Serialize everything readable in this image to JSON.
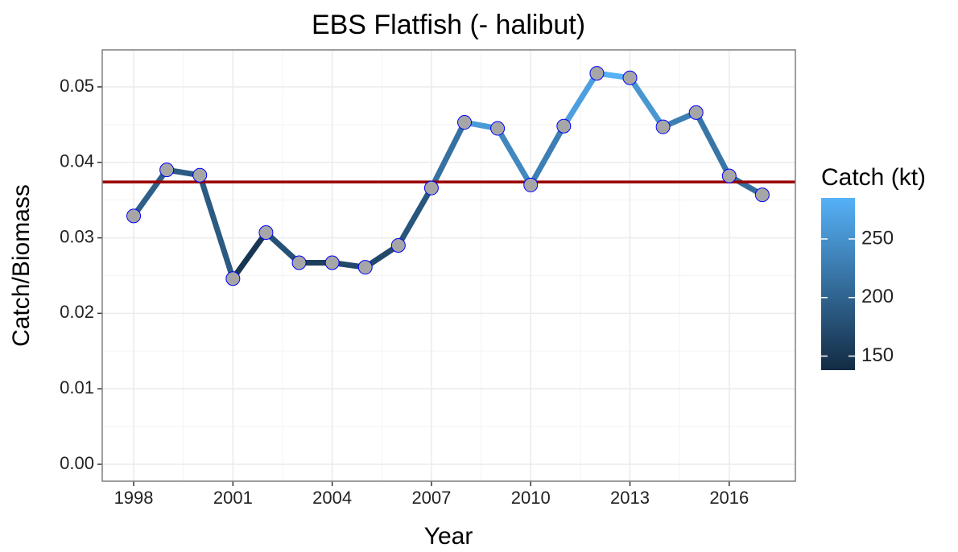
{
  "chart_data": {
    "type": "line",
    "title": "EBS Flatfish (- halibut)",
    "x_label": "Year",
    "y_label": "Catch/Biomass",
    "x": [
      1998,
      1999,
      2000,
      2001,
      2002,
      2003,
      2004,
      2005,
      2006,
      2007,
      2008,
      2009,
      2010,
      2011,
      2012,
      2013,
      2014,
      2015,
      2016,
      2017
    ],
    "series": [
      {
        "values": [
          0.0329,
          0.039,
          0.0383,
          0.0246,
          0.0307,
          0.0267,
          0.0267,
          0.0261,
          0.029,
          0.0366,
          0.0453,
          0.0445,
          0.037,
          0.0448,
          0.0518,
          0.0512,
          0.0447,
          0.0466,
          0.0382,
          0.0357
        ],
        "color_values": [
          195,
          190,
          190,
          150,
          180,
          160,
          170,
          170,
          185,
          215,
          260,
          240,
          230,
          265,
          285,
          255,
          230,
          220,
          210,
          200
        ],
        "point_color": "#a6a6a6",
        "point_edge": "#0000ff"
      }
    ],
    "hline": {
      "value": 0.0374,
      "color": "#990000"
    },
    "color_scale": {
      "title": "Catch (kt)",
      "low": "#132b43",
      "high": "#56b1f7",
      "lim": [
        138,
        285
      ],
      "ticks": [
        150,
        200,
        250
      ]
    },
    "xlim": [
      1997.05,
      2018
    ],
    "xticks": [
      1998,
      2001,
      2004,
      2007,
      2010,
      2013,
      2016
    ],
    "ylim": [
      -0.00224,
      0.0549
    ],
    "yticks": [
      {
        "value": 0,
        "label": "0.00"
      },
      0.01,
      0.02,
      0.03,
      0.04,
      0.05
    ],
    "grid": true
  }
}
